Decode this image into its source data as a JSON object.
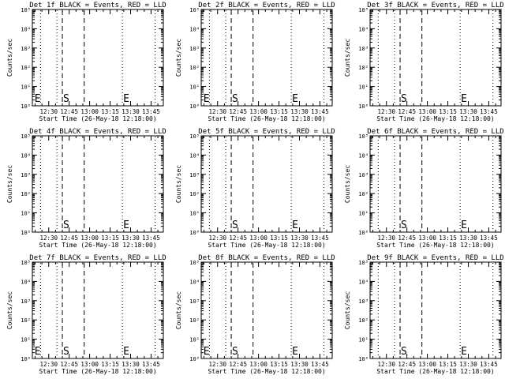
{
  "chart_data": [
    {
      "type": "line",
      "title": "Det 1f BLACK = Events, RED = LLD",
      "xlabel": "Start Time (26-May-18 12:18:00)",
      "ylabel": "Counts/sec",
      "x_ticks": [
        "12:30",
        "12:45",
        "13:00",
        "13:15",
        "13:30",
        "13:45"
      ],
      "y_ticks": [
        "10⁰",
        "10¹",
        "10²",
        "10³",
        "10⁴",
        "10⁵"
      ],
      "ylim": [
        1,
        100000
      ],
      "ylog": true,
      "xlim": [
        "12:18",
        "13:54"
      ],
      "vlines": [
        {
          "x": "12:24",
          "style": "dotted"
        },
        {
          "x": "12:36",
          "style": "dotted"
        },
        {
          "x": "12:40",
          "style": "dashed"
        },
        {
          "x": "12:56",
          "style": "dashed"
        },
        {
          "x": "13:24",
          "style": "dotted"
        },
        {
          "x": "13:48",
          "style": "dotted"
        }
      ],
      "markers": [
        {
          "label": "E",
          "x": "12:19"
        },
        {
          "label": "S",
          "x": "12:40"
        },
        {
          "label": "E",
          "x": "13:24"
        }
      ]
    },
    {
      "type": "line",
      "title": "Det 2f BLACK = Events, RED = LLD",
      "xlabel": "Start Time (26-May-18 12:18:00)",
      "ylabel": "Counts/sec",
      "x_ticks": [
        "12:30",
        "12:45",
        "13:00",
        "13:15",
        "13:30",
        "13:45"
      ],
      "y_ticks": [
        "10⁰",
        "10¹",
        "10²",
        "10³",
        "10⁴",
        "10⁵"
      ],
      "ylim": [
        1,
        100000
      ],
      "ylog": true,
      "xlim": [
        "12:18",
        "13:54"
      ],
      "vlines": [
        {
          "x": "12:24",
          "style": "dotted"
        },
        {
          "x": "12:36",
          "style": "dotted"
        },
        {
          "x": "12:40",
          "style": "dashed"
        },
        {
          "x": "12:56",
          "style": "dashed"
        },
        {
          "x": "13:24",
          "style": "dotted"
        },
        {
          "x": "13:48",
          "style": "dotted"
        }
      ],
      "markers": [
        {
          "label": "E",
          "x": "12:19"
        },
        {
          "label": "S",
          "x": "12:40"
        },
        {
          "label": "E",
          "x": "13:24"
        }
      ]
    },
    {
      "type": "line",
      "title": "Det 3f BLACK = Events, RED = LLD",
      "xlabel": "Start Time (26-May-18 12:18:00)",
      "ylabel": "Counts/sec",
      "x_ticks": [
        "12:30",
        "12:45",
        "13:00",
        "13:15",
        "13:30",
        "13:45"
      ],
      "y_ticks": [
        "10⁰",
        "10¹",
        "10²",
        "10³",
        "10⁴",
        "10⁵"
      ],
      "ylim": [
        1,
        100000
      ],
      "ylog": true,
      "xlim": [
        "12:18",
        "13:54"
      ],
      "vlines": [
        {
          "x": "12:24",
          "style": "dotted"
        },
        {
          "x": "12:36",
          "style": "dotted"
        },
        {
          "x": "12:40",
          "style": "dashed"
        },
        {
          "x": "12:56",
          "style": "dashed"
        },
        {
          "x": "13:24",
          "style": "dotted"
        },
        {
          "x": "13:48",
          "style": "dotted"
        }
      ],
      "markers": [
        {
          "label": "S",
          "x": "12:40"
        },
        {
          "label": "E",
          "x": "13:24"
        }
      ]
    },
    {
      "type": "line",
      "title": "Det 4f BLACK = Events, RED = LLD",
      "xlabel": "Start Time (26-May-18 12:18:00)",
      "ylabel": "Counts/sec",
      "x_ticks": [
        "12:30",
        "12:45",
        "13:00",
        "13:15",
        "13:30",
        "13:45"
      ],
      "y_ticks": [
        "10⁰",
        "10¹",
        "10²",
        "10³",
        "10⁴",
        "10⁵"
      ],
      "ylim": [
        1,
        100000
      ],
      "ylog": true,
      "xlim": [
        "12:18",
        "13:54"
      ],
      "vlines": [
        {
          "x": "12:24",
          "style": "dotted"
        },
        {
          "x": "12:36",
          "style": "dotted"
        },
        {
          "x": "12:40",
          "style": "dashed"
        },
        {
          "x": "12:56",
          "style": "dashed"
        },
        {
          "x": "13:24",
          "style": "dotted"
        },
        {
          "x": "13:48",
          "style": "dotted"
        }
      ],
      "markers": [
        {
          "label": "S",
          "x": "12:40"
        },
        {
          "label": "E",
          "x": "13:24"
        }
      ]
    },
    {
      "type": "line",
      "title": "Det 5f BLACK = Events, RED = LLD",
      "xlabel": "Start Time (26-May-18 12:18:00)",
      "ylabel": "Counts/sec",
      "x_ticks": [
        "12:30",
        "12:45",
        "13:00",
        "13:15",
        "13:30",
        "13:45"
      ],
      "y_ticks": [
        "10⁰",
        "10¹",
        "10²",
        "10³",
        "10⁴",
        "10⁵"
      ],
      "ylim": [
        1,
        100000
      ],
      "ylog": true,
      "xlim": [
        "12:18",
        "13:54"
      ],
      "vlines": [
        {
          "x": "12:24",
          "style": "dotted"
        },
        {
          "x": "12:36",
          "style": "dotted"
        },
        {
          "x": "12:40",
          "style": "dashed"
        },
        {
          "x": "12:56",
          "style": "dashed"
        },
        {
          "x": "13:24",
          "style": "dotted"
        },
        {
          "x": "13:48",
          "style": "dotted"
        }
      ],
      "markers": [
        {
          "label": "S",
          "x": "12:40"
        },
        {
          "label": "E",
          "x": "13:24"
        }
      ]
    },
    {
      "type": "line",
      "title": "Det 6f BLACK = Events, RED = LLD",
      "xlabel": "Start Time (26-May-18 12:18:00)",
      "ylabel": "Counts/sec",
      "x_ticks": [
        "12:30",
        "12:45",
        "13:00",
        "13:15",
        "13:30",
        "13:45"
      ],
      "y_ticks": [
        "10⁰",
        "10¹",
        "10²",
        "10³",
        "10⁴",
        "10⁵"
      ],
      "ylim": [
        1,
        100000
      ],
      "ylog": true,
      "xlim": [
        "12:18",
        "13:54"
      ],
      "vlines": [
        {
          "x": "12:24",
          "style": "dotted"
        },
        {
          "x": "12:36",
          "style": "dotted"
        },
        {
          "x": "12:40",
          "style": "dashed"
        },
        {
          "x": "12:56",
          "style": "dashed"
        },
        {
          "x": "13:24",
          "style": "dotted"
        },
        {
          "x": "13:48",
          "style": "dotted"
        }
      ],
      "markers": [
        {
          "label": "S",
          "x": "12:40"
        },
        {
          "label": "E",
          "x": "13:24"
        }
      ]
    },
    {
      "type": "line",
      "title": "Det 7f BLACK = Events, RED = LLD",
      "xlabel": "Start Time (26-May-18 12:18:00)",
      "ylabel": "Counts/sec",
      "x_ticks": [
        "12:30",
        "12:45",
        "13:00",
        "13:15",
        "13:30",
        "13:45"
      ],
      "y_ticks": [
        "10⁰",
        "10¹",
        "10²",
        "10³",
        "10⁴",
        "10⁵"
      ],
      "ylim": [
        1,
        100000
      ],
      "ylog": true,
      "xlim": [
        "12:18",
        "13:54"
      ],
      "vlines": [
        {
          "x": "12:24",
          "style": "dotted"
        },
        {
          "x": "12:36",
          "style": "dotted"
        },
        {
          "x": "12:40",
          "style": "dashed"
        },
        {
          "x": "12:56",
          "style": "dashed"
        },
        {
          "x": "13:24",
          "style": "dotted"
        },
        {
          "x": "13:48",
          "style": "dotted"
        }
      ],
      "markers": [
        {
          "label": "E",
          "x": "12:19"
        },
        {
          "label": "S",
          "x": "12:40"
        },
        {
          "label": "E",
          "x": "13:24"
        }
      ]
    },
    {
      "type": "line",
      "title": "Det 8f BLACK = Events, RED = LLD",
      "xlabel": "Start Time (26-May-18 12:18:00)",
      "ylabel": "Counts/sec",
      "x_ticks": [
        "12:30",
        "12:45",
        "13:00",
        "13:15",
        "13:30",
        "13:45"
      ],
      "y_ticks": [
        "10⁰",
        "10¹",
        "10²",
        "10³",
        "10⁴",
        "10⁵"
      ],
      "ylim": [
        1,
        100000
      ],
      "ylog": true,
      "xlim": [
        "12:18",
        "13:54"
      ],
      "vlines": [
        {
          "x": "12:24",
          "style": "dotted"
        },
        {
          "x": "12:36",
          "style": "dotted"
        },
        {
          "x": "12:40",
          "style": "dashed"
        },
        {
          "x": "12:56",
          "style": "dashed"
        },
        {
          "x": "13:24",
          "style": "dotted"
        },
        {
          "x": "13:48",
          "style": "dotted"
        }
      ],
      "markers": [
        {
          "label": "E",
          "x": "12:19"
        },
        {
          "label": "S",
          "x": "12:40"
        },
        {
          "label": "E",
          "x": "13:24"
        }
      ]
    },
    {
      "type": "line",
      "title": "Det 9f BLACK = Events, RED = LLD",
      "xlabel": "Start Time (26-May-18 12:18:00)",
      "ylabel": "Counts/sec",
      "x_ticks": [
        "12:30",
        "12:45",
        "13:00",
        "13:15",
        "13:30",
        "13:45"
      ],
      "y_ticks": [
        "10⁰",
        "10¹",
        "10²",
        "10³",
        "10⁴",
        "10⁵"
      ],
      "ylim": [
        1,
        100000
      ],
      "ylog": true,
      "xlim": [
        "12:18",
        "13:54"
      ],
      "vlines": [
        {
          "x": "12:24",
          "style": "dotted"
        },
        {
          "x": "12:36",
          "style": "dotted"
        },
        {
          "x": "12:40",
          "style": "dashed"
        },
        {
          "x": "12:56",
          "style": "dashed"
        },
        {
          "x": "13:24",
          "style": "dotted"
        },
        {
          "x": "13:48",
          "style": "dotted"
        }
      ],
      "markers": [
        {
          "label": "S",
          "x": "12:40"
        },
        {
          "label": "E",
          "x": "13:24"
        }
      ]
    }
  ]
}
